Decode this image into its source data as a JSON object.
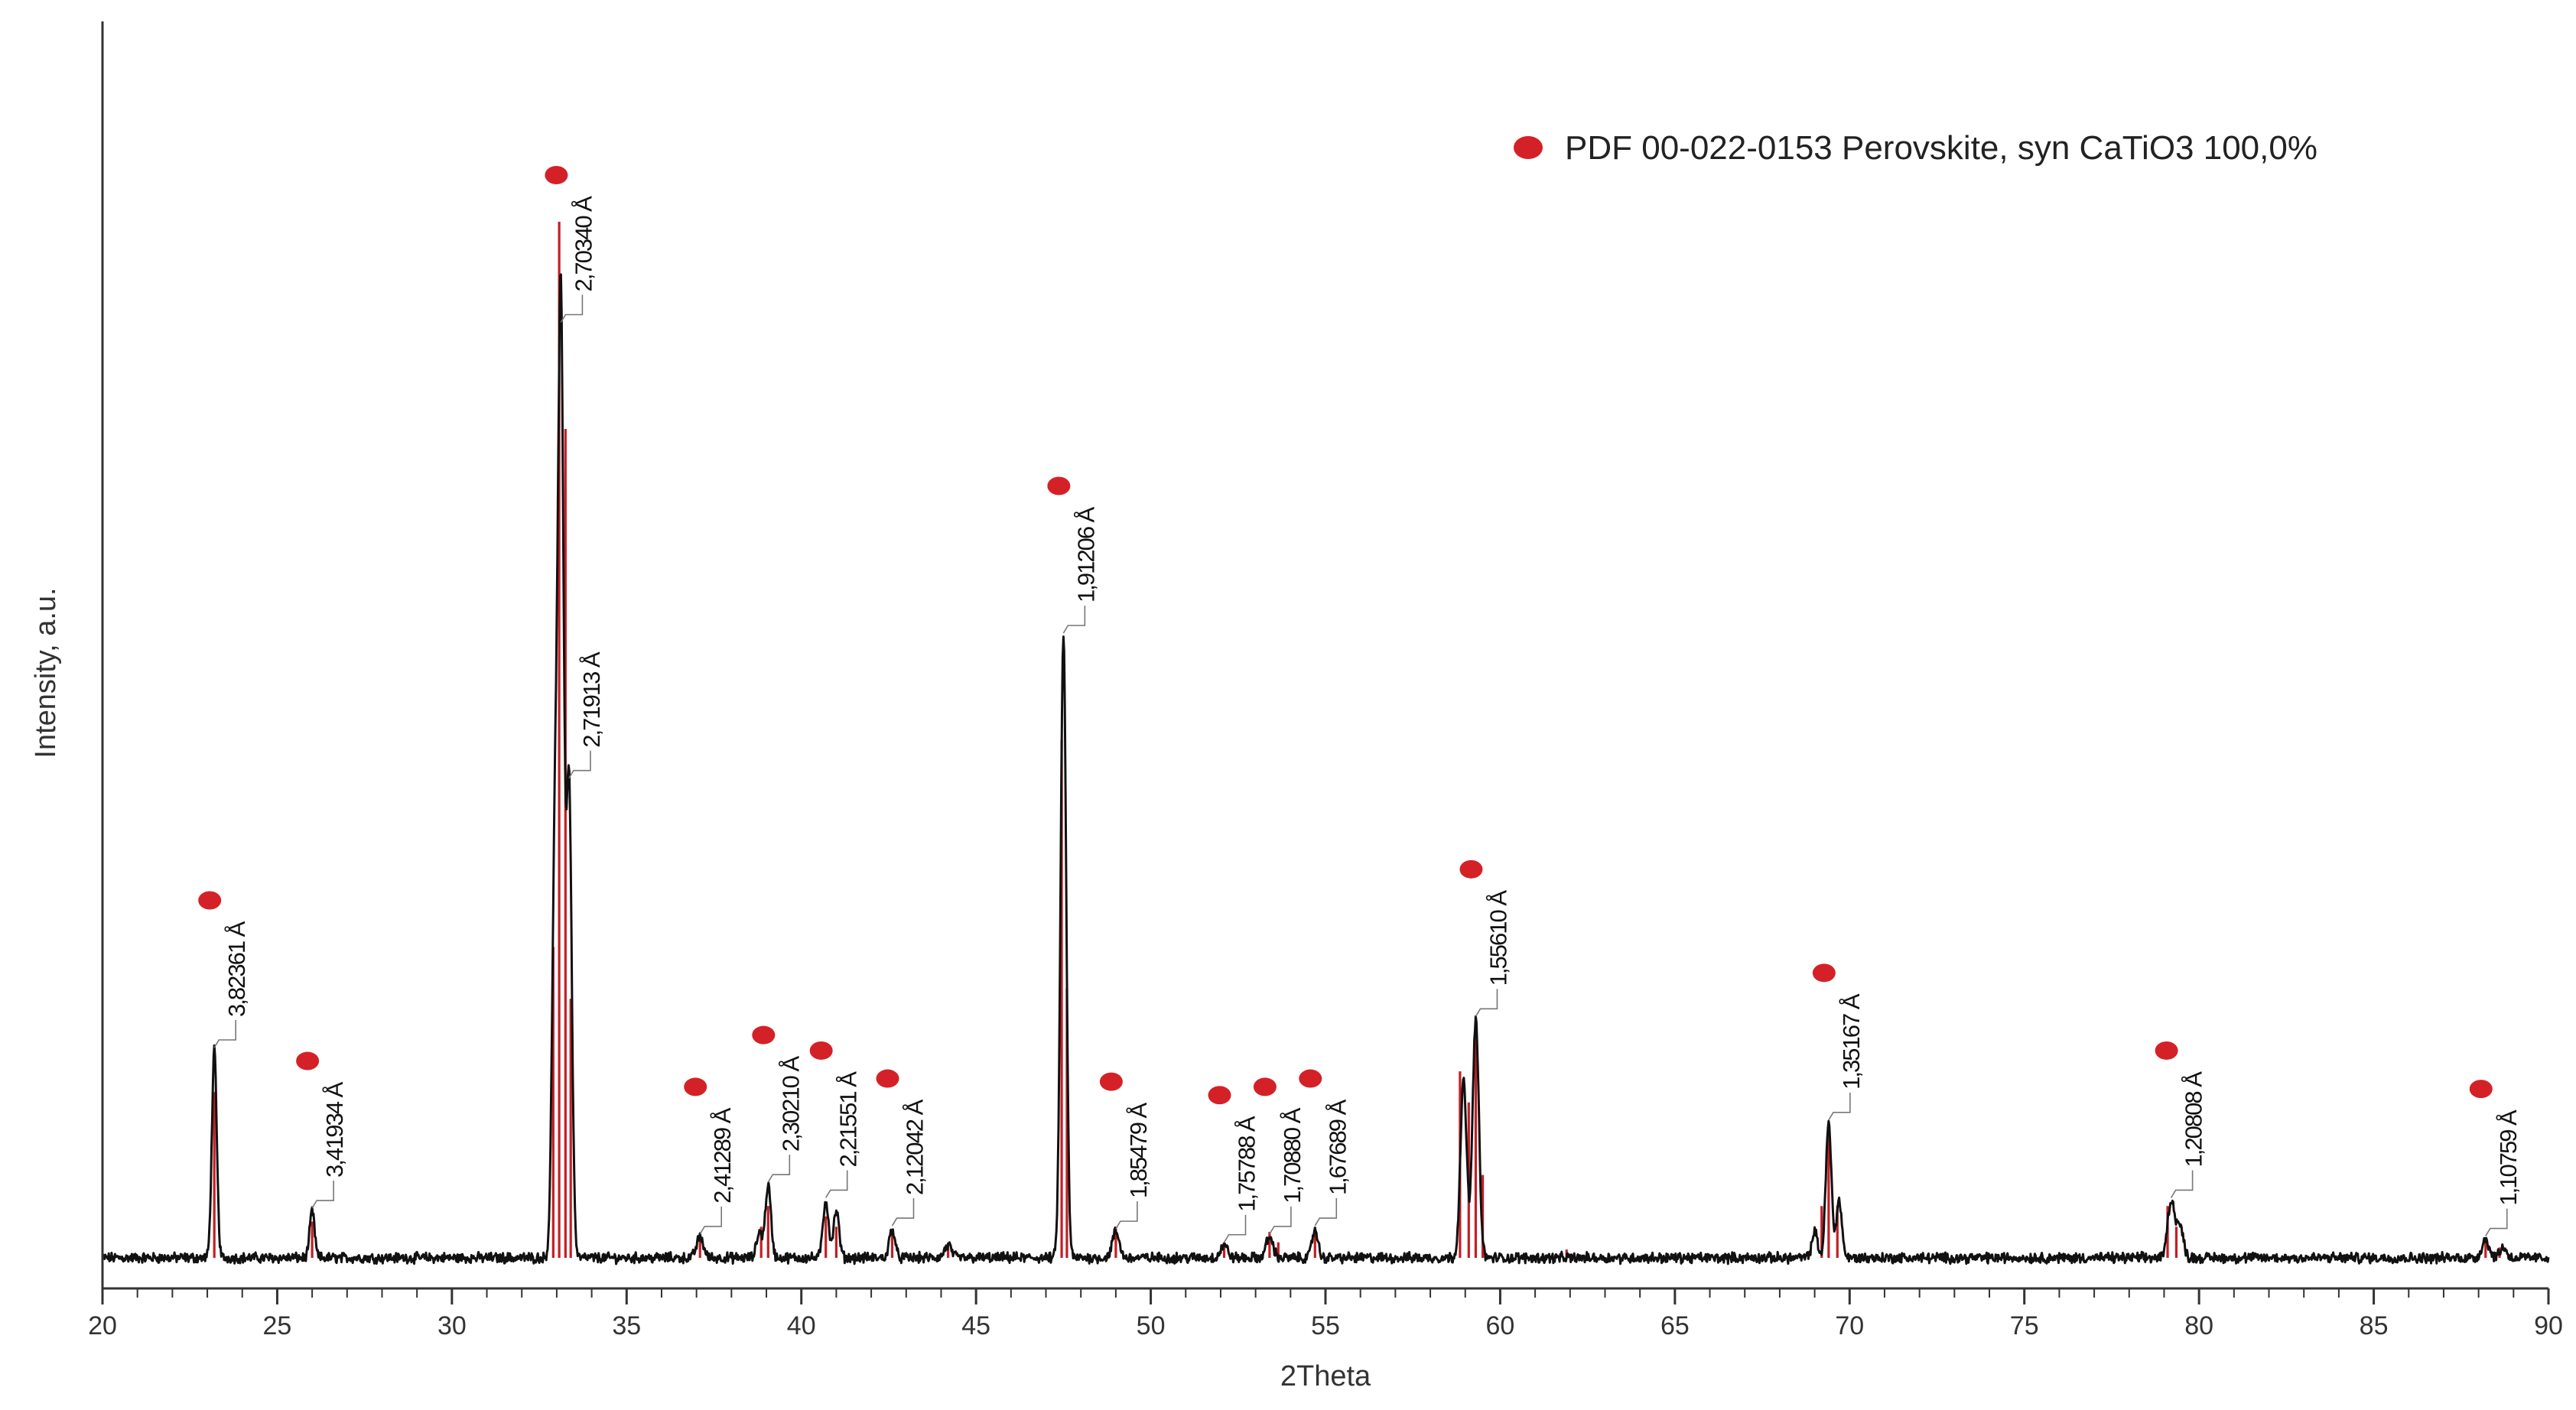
{
  "chart_data": {
    "type": "line",
    "title": "",
    "xlabel": "2Theta",
    "ylabel": "Intensity, a.u.",
    "xlim": [
      20,
      90
    ],
    "xticks": [
      "20",
      "25",
      "30",
      "35",
      "40",
      "45",
      "50",
      "55",
      "60",
      "65",
      "70",
      "75",
      "80",
      "85",
      "90"
    ],
    "ylim": [
      0,
      1.16
    ],
    "grid": false,
    "legend": {
      "position": "top-right",
      "entries": [
        {
          "label": "PDF 00-022-0153 Perovskite, syn CaTiO3 100,0%",
          "marker_color": "#d42127"
        }
      ]
    },
    "measured_color": "#111111",
    "reference_color": "#c41e25",
    "measured_peaks": [
      {
        "x": 23.2,
        "y": 0.2,
        "w": 0.07
      },
      {
        "x": 26.0,
        "y": 0.045,
        "w": 0.07
      },
      {
        "x": 32.95,
        "y": 0.39,
        "w": 0.08
      },
      {
        "x": 33.12,
        "y": 0.9,
        "w": 0.08
      },
      {
        "x": 33.35,
        "y": 0.46,
        "w": 0.08
      },
      {
        "x": 37.1,
        "y": 0.02,
        "w": 0.1
      },
      {
        "x": 38.8,
        "y": 0.025,
        "w": 0.08
      },
      {
        "x": 39.05,
        "y": 0.07,
        "w": 0.08
      },
      {
        "x": 40.7,
        "y": 0.055,
        "w": 0.08
      },
      {
        "x": 41.0,
        "y": 0.045,
        "w": 0.08
      },
      {
        "x": 42.6,
        "y": 0.028,
        "w": 0.08
      },
      {
        "x": 44.2,
        "y": 0.012,
        "w": 0.1
      },
      {
        "x": 47.5,
        "y": 0.6,
        "w": 0.08
      },
      {
        "x": 49.0,
        "y": 0.025,
        "w": 0.1
      },
      {
        "x": 52.1,
        "y": 0.012,
        "w": 0.1
      },
      {
        "x": 53.4,
        "y": 0.02,
        "w": 0.1
      },
      {
        "x": 54.7,
        "y": 0.028,
        "w": 0.08
      },
      {
        "x": 58.95,
        "y": 0.17,
        "w": 0.09
      },
      {
        "x": 59.3,
        "y": 0.23,
        "w": 0.09
      },
      {
        "x": 69.0,
        "y": 0.025,
        "w": 0.08
      },
      {
        "x": 69.4,
        "y": 0.13,
        "w": 0.08
      },
      {
        "x": 69.7,
        "y": 0.055,
        "w": 0.08
      },
      {
        "x": 79.2,
        "y": 0.055,
        "w": 0.1
      },
      {
        "x": 79.45,
        "y": 0.03,
        "w": 0.1
      },
      {
        "x": 88.2,
        "y": 0.018,
        "w": 0.1
      },
      {
        "x": 88.7,
        "y": 0.01,
        "w": 0.1
      }
    ],
    "reference_lines": [
      {
        "x": 23.2,
        "y": 0.16
      },
      {
        "x": 26.0,
        "y": 0.035
      },
      {
        "x": 32.9,
        "y": 0.3
      },
      {
        "x": 33.07,
        "y": 1.0
      },
      {
        "x": 33.25,
        "y": 0.8
      },
      {
        "x": 33.4,
        "y": 0.25
      },
      {
        "x": 37.1,
        "y": 0.018
      },
      {
        "x": 38.85,
        "y": 0.03
      },
      {
        "x": 39.05,
        "y": 0.05
      },
      {
        "x": 40.7,
        "y": 0.04
      },
      {
        "x": 41.0,
        "y": 0.03
      },
      {
        "x": 42.6,
        "y": 0.022
      },
      {
        "x": 44.2,
        "y": 0.012
      },
      {
        "x": 47.45,
        "y": 0.5
      },
      {
        "x": 47.6,
        "y": 0.26
      },
      {
        "x": 49.0,
        "y": 0.03
      },
      {
        "x": 52.1,
        "y": 0.015
      },
      {
        "x": 53.4,
        "y": 0.025
      },
      {
        "x": 53.65,
        "y": 0.015
      },
      {
        "x": 54.7,
        "y": 0.03
      },
      {
        "x": 58.85,
        "y": 0.18
      },
      {
        "x": 59.1,
        "y": 0.15
      },
      {
        "x": 59.3,
        "y": 0.22
      },
      {
        "x": 59.5,
        "y": 0.08
      },
      {
        "x": 61.9,
        "y": 0.008
      },
      {
        "x": 69.2,
        "y": 0.05
      },
      {
        "x": 69.4,
        "y": 0.12
      },
      {
        "x": 69.65,
        "y": 0.05
      },
      {
        "x": 79.1,
        "y": 0.05
      },
      {
        "x": 79.35,
        "y": 0.03
      },
      {
        "x": 88.2,
        "y": 0.02
      },
      {
        "x": 88.6,
        "y": 0.01
      }
    ],
    "peak_annotations": [
      {
        "x": 23.2,
        "y": 0.2,
        "label": "3,82361 Å",
        "marker": true
      },
      {
        "x": 26.0,
        "y": 0.045,
        "label": "3,41934 Å",
        "marker": true
      },
      {
        "x": 33.12,
        "y": 0.9,
        "label": "2,70340 Å",
        "marker": true
      },
      {
        "x": 33.35,
        "y": 0.46,
        "label": "2,71913 Å",
        "marker": false
      },
      {
        "x": 37.1,
        "y": 0.02,
        "label": "2,41289 Å",
        "marker": true
      },
      {
        "x": 39.05,
        "y": 0.07,
        "label": "2,30210 Å",
        "marker": true
      },
      {
        "x": 40.7,
        "y": 0.055,
        "label": "2,21551 Å",
        "marker": true
      },
      {
        "x": 42.6,
        "y": 0.028,
        "label": "2,12042 Å",
        "marker": true
      },
      {
        "x": 47.5,
        "y": 0.6,
        "label": "1,91206 Å",
        "marker": true
      },
      {
        "x": 49.0,
        "y": 0.025,
        "label": "1,85479 Å",
        "marker": true
      },
      {
        "x": 52.1,
        "y": 0.012,
        "label": "1,75788 Å",
        "marker": true
      },
      {
        "x": 53.4,
        "y": 0.02,
        "label": "1,70880 Å",
        "marker": true
      },
      {
        "x": 54.7,
        "y": 0.028,
        "label": "1,67689 Å",
        "marker": true
      },
      {
        "x": 59.3,
        "y": 0.23,
        "label": "1,55610 Å",
        "marker": true
      },
      {
        "x": 69.4,
        "y": 0.13,
        "label": "1,35167 Å",
        "marker": true
      },
      {
        "x": 79.2,
        "y": 0.055,
        "label": "1,20808 Å",
        "marker": true
      },
      {
        "x": 88.2,
        "y": 0.018,
        "label": "1,10759 Å",
        "marker": true
      }
    ]
  }
}
